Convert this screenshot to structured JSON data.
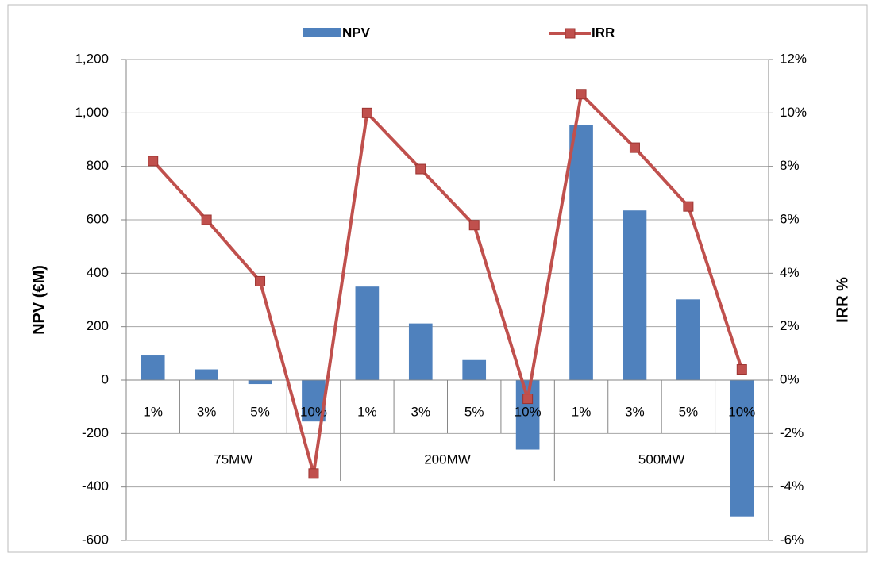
{
  "chart_data": {
    "type": "bar_line",
    "categories": [
      "1%",
      "3%",
      "5%",
      "10%",
      "1%",
      "3%",
      "5%",
      "10%",
      "1%",
      "3%",
      "5%",
      "10%"
    ],
    "category_groups": [
      "75MW",
      "200MW",
      "500MW"
    ],
    "series": [
      {
        "name": "NPV",
        "type": "bar",
        "color": "#4f81bd",
        "axis": "y",
        "values": [
          92,
          40,
          -15,
          -155,
          350,
          212,
          75,
          -260,
          955,
          635,
          302,
          -510
        ]
      },
      {
        "name": "IRR",
        "type": "line",
        "color": "#c0504d",
        "axis": "y2",
        "values": [
          8.2,
          6.0,
          3.7,
          -3.5,
          10.0,
          7.9,
          5.8,
          -0.7,
          10.7,
          8.7,
          6.5,
          0.4
        ]
      }
    ],
    "ylabel": "NPV (€M)",
    "y2label": "IRR %",
    "ylim": [
      -600,
      1200
    ],
    "yticks": [
      -600,
      -400,
      -200,
      0,
      200,
      400,
      600,
      800,
      {
        "value": 1000,
        "label": "1,000"
      },
      {
        "value": 1200,
        "label": "1,200"
      }
    ],
    "y2lim": [
      -6,
      12
    ],
    "y2ticks": [
      {
        "value": -6,
        "label": "-6%"
      },
      {
        "value": -4,
        "label": "-4%"
      },
      {
        "value": -2,
        "label": "-2%"
      },
      {
        "value": 0,
        "label": "0%"
      },
      {
        "value": 2,
        "label": "2%"
      },
      {
        "value": 4,
        "label": "4%"
      },
      {
        "value": 6,
        "label": "6%"
      },
      {
        "value": 8,
        "label": "8%"
      },
      {
        "value": 10,
        "label": "10%"
      },
      {
        "value": 12,
        "label": "12%"
      }
    ],
    "grid": true,
    "legend": "top"
  }
}
